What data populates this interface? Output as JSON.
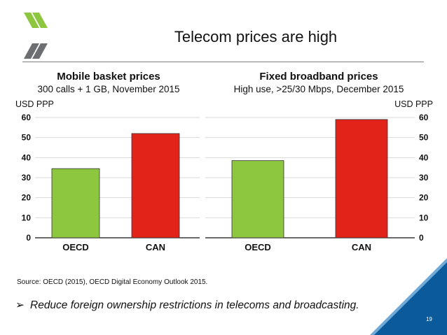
{
  "slide": {
    "title": "Telecom prices are high",
    "source": "Source: OECD (2015), OECD Digital Economy Outlook 2015.",
    "bullet": "Reduce foreign ownership restrictions in telecoms and broadcasting.",
    "page_number": "19",
    "colors": {
      "logo_green": "#8dc63f",
      "logo_grey": "#6d6e71",
      "corner_blue": "#0b5a9c",
      "corner_light": "#6fa9d8"
    }
  },
  "chart_data": [
    {
      "type": "bar",
      "title": "Mobile basket prices",
      "subtitle": "300 calls + 1 GB, November 2015",
      "unit_label": "USD PPP",
      "y_axis_side": "left",
      "categories": [
        "OECD",
        "CAN"
      ],
      "values": [
        34.5,
        52
      ],
      "colors": [
        "#8dc63f",
        "#e2231a"
      ],
      "ylim": [
        0,
        60
      ],
      "yticks": [
        0,
        10,
        20,
        30,
        40,
        50,
        60
      ],
      "grid": true
    },
    {
      "type": "bar",
      "title": "Fixed broadband prices",
      "subtitle": "High use, >25/30 Mbps, December 2015",
      "unit_label": "USD PPP",
      "y_axis_side": "right",
      "categories": [
        "OECD",
        "CAN"
      ],
      "values": [
        38.5,
        59
      ],
      "colors": [
        "#8dc63f",
        "#e2231a"
      ],
      "ylim": [
        0,
        60
      ],
      "yticks": [
        0,
        10,
        20,
        30,
        40,
        50,
        60
      ],
      "grid": true
    }
  ]
}
